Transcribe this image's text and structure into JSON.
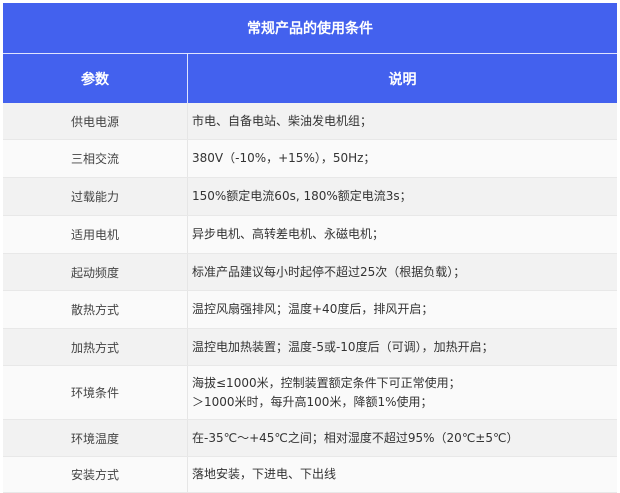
{
  "title": "常规产品的使用条件",
  "headers": {
    "param": "参数",
    "desc": "说明"
  },
  "colors": {
    "header_bg": "#4361ee",
    "row_odd": "#f2f2f2",
    "row_even": "#fafafa"
  },
  "rows": [
    {
      "param": "供电电源",
      "lines": [
        "市电、自备电站、柴油发电机组；"
      ]
    },
    {
      "param": "三相交流",
      "lines": [
        "380V（-10%，+15%），50Hz；"
      ]
    },
    {
      "param": "过载能力",
      "lines": [
        "150%额定电流60s, 180%额定电流3s；"
      ]
    },
    {
      "param": "适用电机",
      "lines": [
        "异步电机、高转差电机、永磁电机；"
      ]
    },
    {
      "param": "起动频度",
      "lines": [
        "标准产品建议每小时起停不超过25次（根据负载）；"
      ]
    },
    {
      "param": "散热方式",
      "lines": [
        "温控风扇强排风；温度+40度后，排风开启；"
      ]
    },
    {
      "param": "加热方式",
      "lines": [
        "温控电加热装置；温度-5或-10度后（可调），加热开启；"
      ]
    },
    {
      "param": "环境条件",
      "lines": [
        "海拔≤1000米，控制装置额定条件下可正常使用；",
        "＞1000米时，每升高100米，降额1%使用；"
      ]
    },
    {
      "param": "环境温度",
      "lines": [
        "在-35℃～+45℃之间；相对湿度不超过95%（20℃±5℃）"
      ]
    },
    {
      "param": "安装方式",
      "lines": [
        "落地安装，下进电、下出线"
      ]
    }
  ]
}
